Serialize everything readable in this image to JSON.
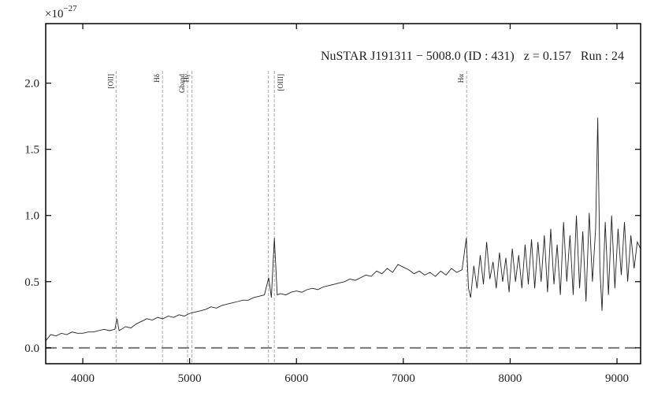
{
  "chart_data": {
    "type": "line",
    "title": "NuSTAR J191311 − 5008.0 (ID : 431)   z = 0.157   Run : 24",
    "y_offset_base": "×10",
    "y_offset_exp": "−27",
    "color": "#222222",
    "x": [
      3650,
      3700,
      3750,
      3800,
      3850,
      3900,
      3950,
      4000,
      4050,
      4100,
      4150,
      4200,
      4250,
      4300,
      4320,
      4340,
      4400,
      4450,
      4500,
      4550,
      4600,
      4650,
      4700,
      4750,
      4800,
      4850,
      4900,
      4950,
      5000,
      5050,
      5100,
      5150,
      5200,
      5250,
      5300,
      5350,
      5400,
      5450,
      5500,
      5550,
      5600,
      5650,
      5700,
      5740,
      5765,
      5793,
      5820,
      5850,
      5900,
      5950,
      6000,
      6050,
      6100,
      6150,
      6200,
      6250,
      6300,
      6350,
      6400,
      6450,
      6500,
      6550,
      6600,
      6650,
      6700,
      6750,
      6800,
      6850,
      6900,
      6950,
      7000,
      7050,
      7100,
      7150,
      7200,
      7250,
      7300,
      7350,
      7400,
      7450,
      7500,
      7550,
      7590,
      7610,
      7630,
      7660,
      7690,
      7720,
      7750,
      7780,
      7810,
      7840,
      7870,
      7900,
      7930,
      7960,
      7990,
      8020,
      8050,
      8080,
      8110,
      8140,
      8170,
      8200,
      8230,
      8260,
      8290,
      8320,
      8350,
      8380,
      8410,
      8440,
      8470,
      8500,
      8530,
      8560,
      8590,
      8620,
      8650,
      8680,
      8710,
      8740,
      8770,
      8800,
      8820,
      8840,
      8860,
      8890,
      8920,
      8950,
      8980,
      9010,
      9040,
      9070,
      9100,
      9130,
      9160,
      9190,
      9220
    ],
    "values": [
      0.05,
      0.1,
      0.09,
      0.11,
      0.1,
      0.12,
      0.11,
      0.11,
      0.12,
      0.12,
      0.13,
      0.14,
      0.13,
      0.14,
      0.22,
      0.13,
      0.16,
      0.15,
      0.18,
      0.2,
      0.22,
      0.21,
      0.23,
      0.22,
      0.24,
      0.23,
      0.25,
      0.24,
      0.26,
      0.27,
      0.28,
      0.29,
      0.31,
      0.3,
      0.32,
      0.33,
      0.34,
      0.35,
      0.36,
      0.36,
      0.38,
      0.39,
      0.4,
      0.53,
      0.38,
      0.83,
      0.4,
      0.41,
      0.4,
      0.42,
      0.43,
      0.42,
      0.44,
      0.45,
      0.44,
      0.46,
      0.47,
      0.48,
      0.49,
      0.5,
      0.52,
      0.51,
      0.53,
      0.55,
      0.54,
      0.58,
      0.56,
      0.6,
      0.57,
      0.63,
      0.61,
      0.59,
      0.56,
      0.58,
      0.55,
      0.57,
      0.54,
      0.58,
      0.55,
      0.6,
      0.57,
      0.59,
      0.83,
      0.45,
      0.38,
      0.62,
      0.45,
      0.7,
      0.48,
      0.8,
      0.52,
      0.65,
      0.45,
      0.72,
      0.5,
      0.68,
      0.42,
      0.75,
      0.5,
      0.7,
      0.45,
      0.78,
      0.48,
      0.82,
      0.45,
      0.8,
      0.5,
      0.85,
      0.42,
      0.9,
      0.48,
      0.78,
      0.4,
      0.95,
      0.5,
      0.85,
      0.4,
      1.0,
      0.45,
      0.88,
      0.35,
      1.02,
      0.5,
      0.9,
      1.74,
      0.6,
      0.28,
      0.95,
      0.4,
      1.0,
      0.45,
      0.9,
      0.55,
      0.95,
      0.5,
      0.85,
      0.6,
      0.8,
      0.75
    ],
    "xlim": [
      3653,
      9221
    ],
    "ylim": [
      -0.12,
      2.45
    ],
    "xticks": [
      4000,
      5000,
      6000,
      7000,
      8000,
      9000
    ],
    "yticks": [
      {
        "value": 0,
        "label": "0.0"
      },
      {
        "value": 0.5,
        "label": "0.5"
      },
      {
        "value": 1,
        "label": "1.0"
      },
      {
        "value": 1.5,
        "label": "1.5"
      },
      {
        "value": 2,
        "label": "2.0"
      }
    ],
    "hline": 0,
    "lines": [
      {
        "label": "[OII]",
        "x": [
          4312
        ]
      },
      {
        "label": "Hδ",
        "x": [
          4746
        ]
      },
      {
        "label": "Gband",
        "x": [
          4980
        ]
      },
      {
        "label": "Hγ",
        "x": [
          5022
        ]
      },
      {
        "label": "[OIII]",
        "x": [
          5738,
          5793
        ]
      },
      {
        "label": "Hα",
        "x": [
          7593
        ]
      }
    ]
  }
}
